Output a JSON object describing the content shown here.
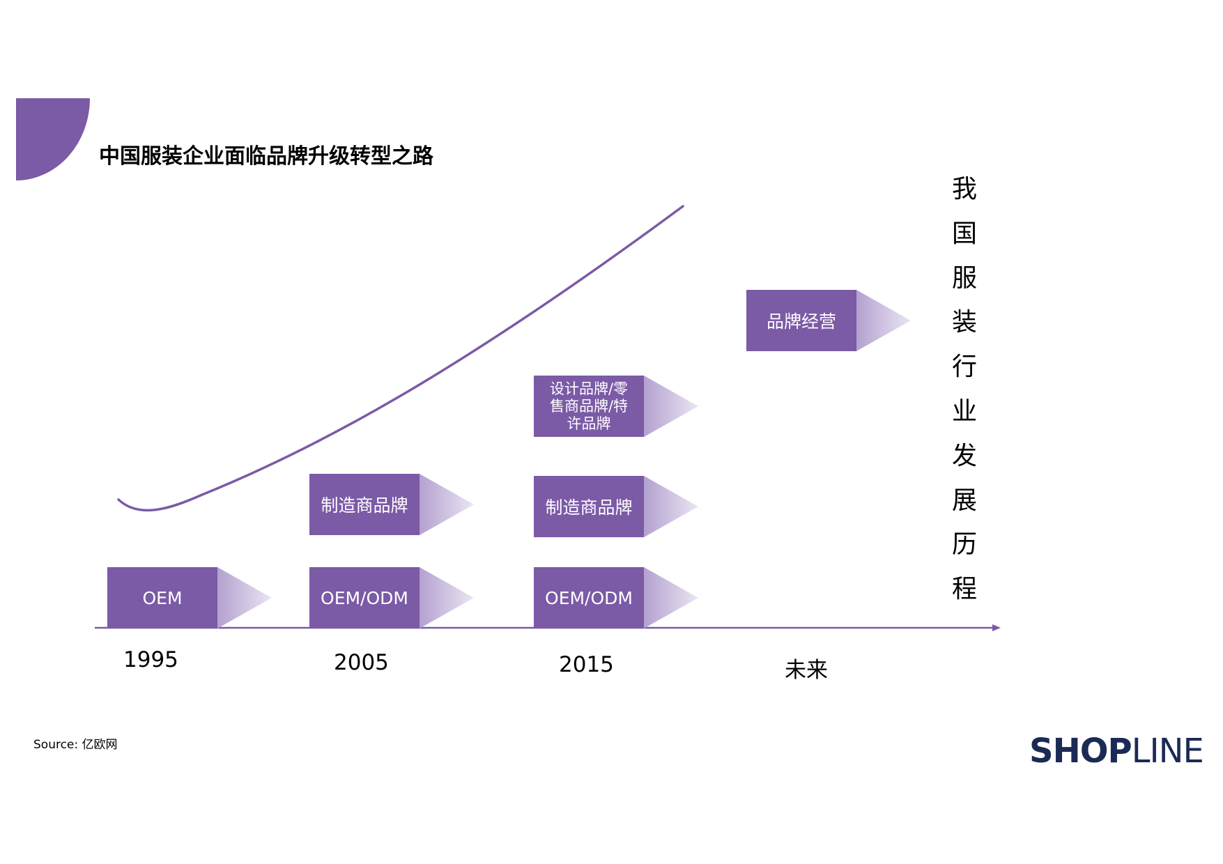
{
  "title": "中国服装企业面临品牌升级转型之路",
  "vertical_title": [
    "我",
    "国",
    "服",
    "装",
    "行",
    "业",
    "发",
    "展",
    "历",
    "程"
  ],
  "stages": [
    {
      "label_lines": [
        "OEM"
      ]
    },
    {
      "label_lines": [
        "OEM/ODM"
      ]
    },
    {
      "label_lines": [
        "制造商品牌"
      ]
    },
    {
      "label_lines": [
        "OEM/ODM"
      ]
    },
    {
      "label_lines": [
        "制造商品牌"
      ]
    },
    {
      "label_lines": [
        "设计品牌/零",
        "售商品牌/特",
        "许品牌"
      ]
    },
    {
      "label_lines": [
        "品牌经营"
      ]
    }
  ],
  "timeline": [
    "1995",
    "2005",
    "2015",
    "未来"
  ],
  "source": "Source: 亿欧网",
  "logo": {
    "bold_part": "SHOP",
    "thin_part": "LINE"
  },
  "colors": {
    "accent": "#7b5aa6",
    "arrow_light": "#e6dff0",
    "logo": "#1b2a55"
  },
  "icons": [
    "axis-arrow-icon",
    "growth-curve"
  ]
}
